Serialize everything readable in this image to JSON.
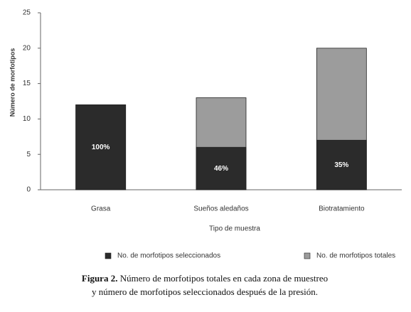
{
  "chart_data": {
    "type": "bar",
    "y_label": "Número de morfotipos",
    "x_label": "Tipo de muestra",
    "categories": [
      "Grasa",
      "Sueños aledaños",
      "Biotratamiento"
    ],
    "series": [
      {
        "name": "No. de morfotipos seleccionados",
        "color": "#2b2b2b",
        "values": [
          12,
          6,
          7
        ]
      },
      {
        "name": "No. de morfotipos totales",
        "color": "#9c9c9c",
        "values": [
          12,
          13,
          20
        ]
      }
    ],
    "annotations": [
      "100%",
      "46%",
      "35%"
    ],
    "ylim": [
      0,
      25
    ],
    "yticks": [
      0,
      5,
      10,
      15,
      20,
      25
    ],
    "legend": "bottom",
    "caption": {
      "label": "Figura 2.",
      "lines": [
        "Número de morfotipos totales en cada zona de muestreo",
        "y número de morfotipos seleccionados después de la presión."
      ]
    }
  }
}
